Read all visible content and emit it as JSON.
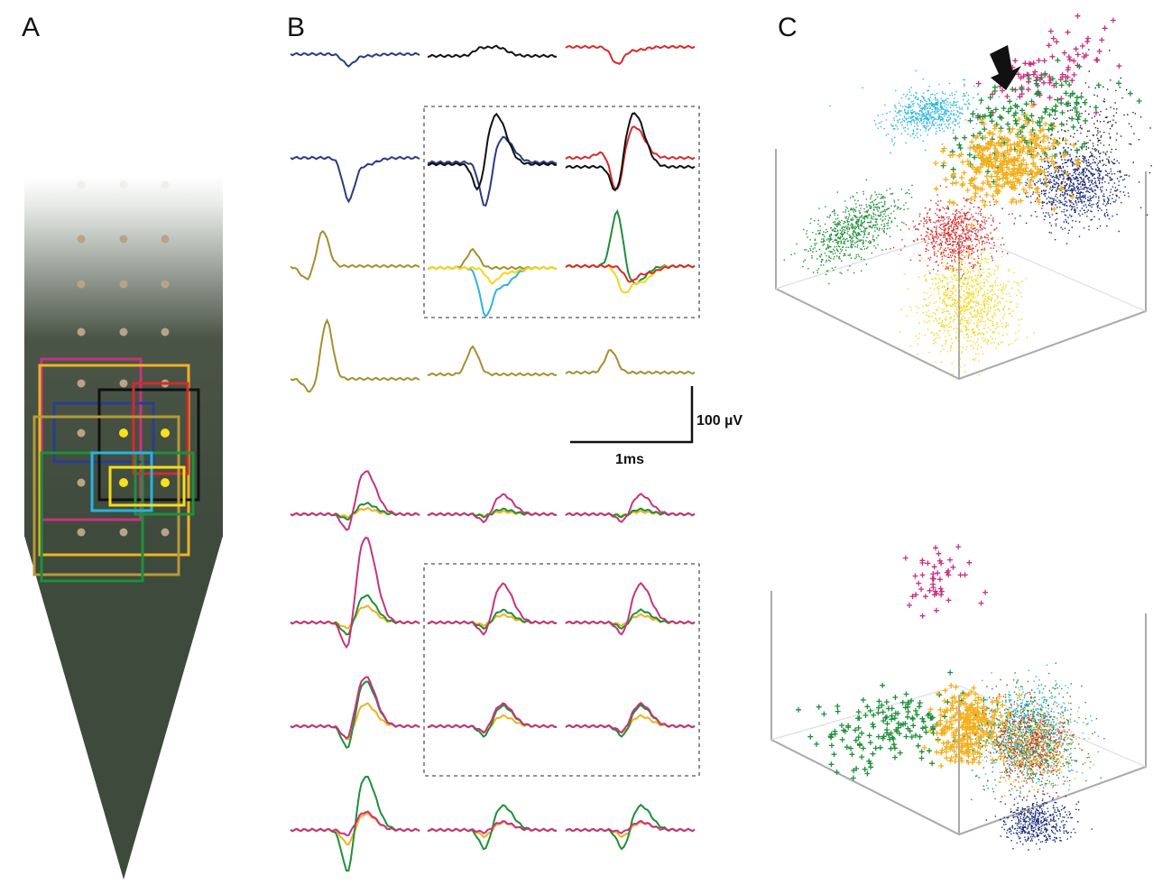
{
  "panels": {
    "a": {
      "label": "A"
    },
    "b": {
      "label": "B",
      "scale_voltage": "100 µV",
      "scale_time": "1ms"
    },
    "c": {
      "label": "C"
    }
  }
}
